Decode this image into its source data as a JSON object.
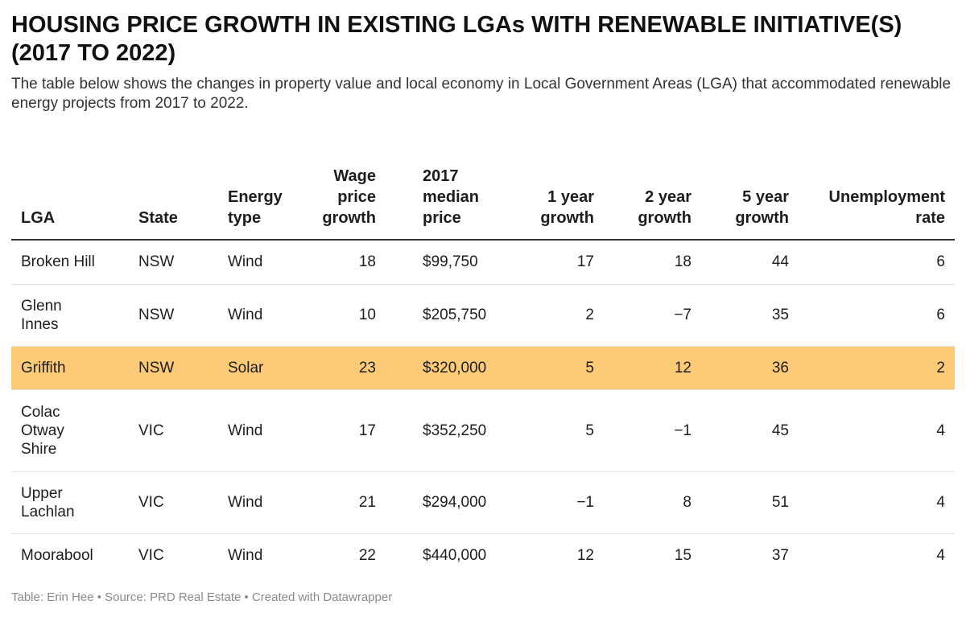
{
  "title": "HOUSING PRICE GROWTH IN EXISTING LGAs WITH RENEWABLE INITIATIVE(S) (2017 TO 2022)",
  "description": "The table below shows the changes in property value and local economy in Local Government Areas (LGA) that accommodated renewable energy projects from 2017 to 2022.",
  "footer": "Table: Erin Hee • Source: PRD Real Estate • Created with Datawrapper",
  "colors": {
    "highlight_row": "#fdca78",
    "header_rule": "#333333",
    "row_rule": "#e2e2e2"
  },
  "chart_data": {
    "type": "table",
    "columns": [
      "LGA",
      "State",
      "Energy type",
      "Wage price growth",
      "2017 median price",
      "1 year growth",
      "2 year growth",
      "5 year growth",
      "Unemployment rate"
    ],
    "rows": [
      [
        "Broken Hill",
        "NSW",
        "Wind",
        "18",
        "$99,750",
        "17",
        "18",
        "44",
        "6"
      ],
      [
        "Glenn Innes",
        "NSW",
        "Wind",
        "10",
        "$205,750",
        "2",
        "−7",
        "35",
        "6"
      ],
      [
        "Griffith",
        "NSW",
        "Solar",
        "23",
        "$320,000",
        "5",
        "12",
        "36",
        "2"
      ],
      [
        "Colac Otway Shire",
        "VIC",
        "Wind",
        "17",
        "$352,250",
        "5",
        "−1",
        "45",
        "4"
      ],
      [
        "Upper Lachlan",
        "VIC",
        "Wind",
        "21",
        "$294,000",
        "−1",
        "8",
        "51",
        "4"
      ],
      [
        "Moorabool",
        "VIC",
        "Wind",
        "22",
        "$440,000",
        "12",
        "15",
        "37",
        "4"
      ]
    ],
    "highlighted_row": "Griffith"
  }
}
